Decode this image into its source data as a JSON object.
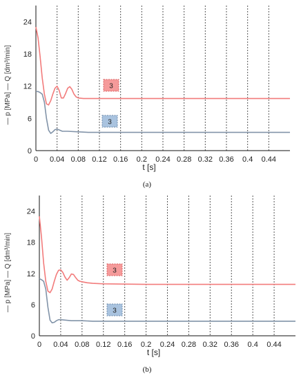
{
  "colors": {
    "p": "#f27b7b",
    "Q": "#8193a8",
    "box_p_fill": "#f59a9a",
    "box_p_stroke": "#d95f5f",
    "box_q_fill": "#a9c3df",
    "box_q_stroke": "#6b88aa",
    "grid": "#555555",
    "axis": "#111111"
  },
  "chart_data": [
    {
      "type": "line",
      "subfig_label": "(a)",
      "xlabel": "t [s]",
      "ylabel_segments": [
        "— p [MPa]",
        "— Q [dm³/min]"
      ],
      "x_ticks": [
        "0",
        "0.04",
        "0.08",
        "0.12",
        "0.16",
        "0.2",
        "0.24",
        "0.28",
        "0.32",
        "0.36",
        "0.4",
        "0.44"
      ],
      "y_ticks": [
        "0",
        "6",
        "12",
        "18",
        "24"
      ],
      "xlim": [
        0,
        0.48
      ],
      "ylim": [
        0,
        27
      ],
      "grid": "vertical dotted at x ticks",
      "box_label": "3",
      "series": [
        {
          "key": "p",
          "x": [
            0,
            0.004,
            0.008,
            0.012,
            0.016,
            0.02,
            0.024,
            0.028,
            0.032,
            0.036,
            0.04,
            0.044,
            0.048,
            0.052,
            0.056,
            0.06,
            0.064,
            0.068,
            0.072,
            0.076,
            0.08,
            0.09,
            0.1,
            0.12,
            0.2,
            0.3,
            0.4,
            0.48
          ],
          "y": [
            23,
            21,
            17.5,
            13.5,
            10.5,
            8.7,
            8.5,
            9.3,
            10.5,
            11.6,
            12.0,
            11.2,
            9.8,
            9.8,
            10.6,
            11.6,
            11.9,
            11.4,
            10.5,
            10.0,
            9.8,
            9.7,
            9.7,
            9.7,
            9.7,
            9.7,
            9.7,
            9.7
          ]
        },
        {
          "key": "Q",
          "x": [
            0,
            0.004,
            0.008,
            0.012,
            0.016,
            0.02,
            0.024,
            0.028,
            0.032,
            0.036,
            0.04,
            0.045,
            0.05,
            0.06,
            0.08,
            0.1,
            0.12,
            0.2,
            0.3,
            0.4,
            0.48
          ],
          "y": [
            11.0,
            11.0,
            10.8,
            10.5,
            9.0,
            6.0,
            3.8,
            3.2,
            3.5,
            3.9,
            4.0,
            3.8,
            3.6,
            3.6,
            3.5,
            3.4,
            3.4,
            3.4,
            3.4,
            3.4,
            3.4
          ]
        }
      ]
    },
    {
      "type": "line",
      "subfig_label": "(b)",
      "xlabel": "t [s]",
      "ylabel_segments": [
        "— p [MPa]",
        "— Q [dm³/min]"
      ],
      "x_ticks": [
        "0",
        "0.04",
        "0.08",
        "0.12",
        "0.16",
        "0.2",
        "0.24",
        "0.28",
        "0.32",
        "0.36",
        "0.4",
        "0.44"
      ],
      "y_ticks": [
        "0",
        "6",
        "12",
        "18",
        "24"
      ],
      "xlim": [
        0,
        0.48
      ],
      "ylim": [
        0,
        27
      ],
      "grid": "vertical dotted at x ticks",
      "box_label": "3",
      "series": [
        {
          "key": "p",
          "x": [
            0,
            0.004,
            0.008,
            0.012,
            0.016,
            0.02,
            0.024,
            0.028,
            0.032,
            0.036,
            0.04,
            0.044,
            0.048,
            0.052,
            0.056,
            0.06,
            0.064,
            0.068,
            0.072,
            0.076,
            0.08,
            0.09,
            0.1,
            0.12,
            0.2,
            0.3,
            0.4,
            0.48
          ],
          "y": [
            23,
            19,
            14,
            10.5,
            8.6,
            8.3,
            9.0,
            10.5,
            11.8,
            12.6,
            12.7,
            12.2,
            11.3,
            10.7,
            11.2,
            11.9,
            11.8,
            11.2,
            10.7,
            10.5,
            10.4,
            10.2,
            10.1,
            10.0,
            9.9,
            9.9,
            9.9,
            9.9
          ]
        },
        {
          "key": "Q",
          "x": [
            0,
            0.004,
            0.008,
            0.012,
            0.016,
            0.02,
            0.024,
            0.028,
            0.032,
            0.036,
            0.04,
            0.05,
            0.06,
            0.08,
            0.1,
            0.12,
            0.2,
            0.3,
            0.4,
            0.48
          ],
          "y": [
            11.0,
            10.8,
            10.5,
            9.0,
            5.5,
            3.0,
            2.5,
            2.6,
            2.9,
            3.1,
            3.1,
            3.0,
            2.9,
            2.9,
            2.8,
            2.8,
            2.8,
            2.8,
            2.8,
            2.8
          ]
        }
      ]
    }
  ]
}
